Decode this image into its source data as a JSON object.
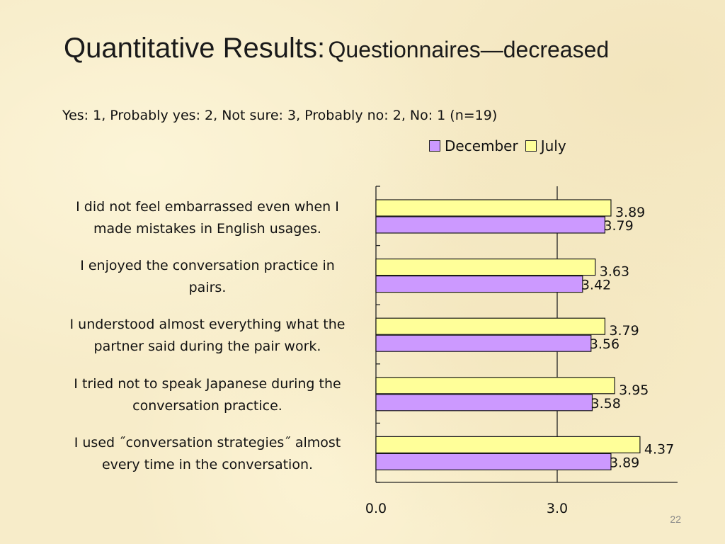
{
  "title": {
    "main": "Quantitative Results:",
    "sub": "Questionnaires—decreased"
  },
  "scale_note": "Yes: 1, Probably yes: 2, Not sure: 3, Probably no: 2, No: 1 (n=19)",
  "legend": {
    "december": "December",
    "july": "July"
  },
  "slide_number": "22",
  "colors": {
    "december": "#cc99ff",
    "july": "#ffff99",
    "border": "#1a1a1a"
  },
  "chart_data": {
    "type": "bar",
    "orientation": "horizontal",
    "categories": [
      "I did not feel embarrassed even when I made mistakes in English usages.",
      "I enjoyed the conversation practice in pairs.",
      "I understood almost everything what the partner said during the pair work.",
      "I tried not to speak Japanese during the conversation practice.",
      "I used \"conversation strategies\" almost every time in the conversation."
    ],
    "category_lines": [
      [
        "I did not feel embarrassed even when I",
        "made mistakes in English usages."
      ],
      [
        "I enjoyed the conversation practice in",
        "pairs."
      ],
      [
        "I understood almost everything what the",
        "partner said during the pair work."
      ],
      [
        "I tried not to speak Japanese during the",
        "conversation practice."
      ],
      [
        "I used ˝conversation strategies˝ almost",
        "every time in the conversation."
      ]
    ],
    "series": [
      {
        "name": "July",
        "values": [
          3.89,
          3.63,
          3.79,
          3.95,
          4.37
        ],
        "labels": [
          "3.89",
          "3.63",
          "3.79",
          "3.95",
          "4.37"
        ]
      },
      {
        "name": "December",
        "values": [
          3.79,
          3.42,
          3.56,
          3.58,
          3.89
        ],
        "labels": [
          "3.79",
          "3.42",
          "3.56",
          "3.58",
          "3.89"
        ]
      }
    ],
    "x_ticks": [
      "0.0",
      "3.0"
    ],
    "x_tick_values": [
      0,
      3
    ],
    "xlim": [
      0,
      5
    ],
    "legend_position": "top-right"
  }
}
